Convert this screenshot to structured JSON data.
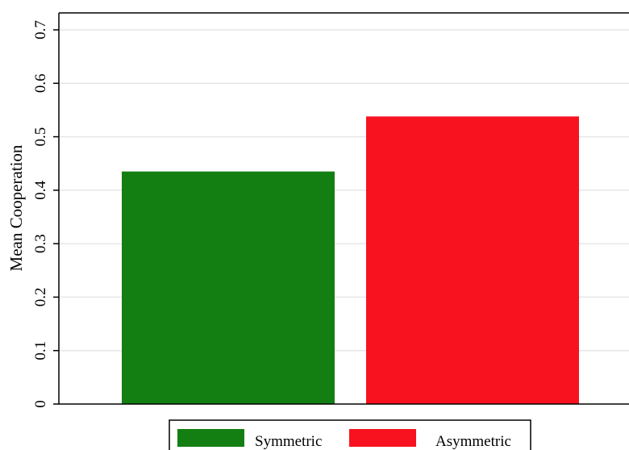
{
  "chart_data": {
    "type": "bar",
    "categories": [
      "Symmetric",
      "Asymmetric"
    ],
    "values": [
      0.435,
      0.538
    ],
    "colors": [
      "#137f13",
      "#f8121f"
    ],
    "title": "",
    "xlabel": "",
    "ylabel": "Mean Cooperation",
    "ylim": [
      0,
      0.7
    ],
    "yticks": [
      0,
      0.1,
      0.2,
      0.3,
      0.4,
      0.5,
      0.6,
      0.7
    ],
    "ytick_labels": [
      "0",
      "0.1",
      "0.2",
      "0.3",
      "0.4",
      "0.5",
      "0.6",
      "0.7"
    ],
    "grid": true,
    "legend": {
      "placement": "bottom",
      "entries": [
        "Symmetric",
        "Asymmetric"
      ]
    }
  }
}
